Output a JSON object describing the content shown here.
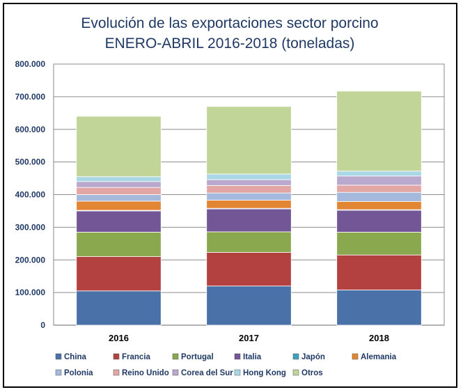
{
  "chart_data": {
    "type": "bar",
    "stacked": true,
    "title": "Evolución de las exportaciones sector porcino",
    "subtitle": "ENERO-ABRIL 2016-2018 (toneladas)",
    "xlabel": "",
    "ylabel": "",
    "ylim": [
      0,
      800000
    ],
    "grid": true,
    "legend": "bottom",
    "y_tick_labels": [
      "0",
      "100.000",
      "200.000",
      "300.000",
      "400.000",
      "500.000",
      "600.000",
      "700.000",
      "800.000"
    ],
    "categories": [
      "2016",
      "2017",
      "2018"
    ],
    "series": [
      {
        "name": "China",
        "color": "#4a72a9",
        "values": [
          105000,
          120000,
          108000
        ]
      },
      {
        "name": "Francia",
        "color": "#b3413f",
        "values": [
          105000,
          103000,
          107000
        ]
      },
      {
        "name": "Portugal",
        "color": "#8aa84e",
        "values": [
          75000,
          63000,
          70000
        ]
      },
      {
        "name": "Italia",
        "color": "#735696",
        "values": [
          65000,
          70000,
          67000
        ]
      },
      {
        "name": "Japón",
        "color": "#3f9fbc",
        "values": [
          2000,
          2000,
          2000
        ]
      },
      {
        "name": "Alemania",
        "color": "#e38633",
        "values": [
          28000,
          25000,
          25000
        ]
      },
      {
        "name": "Polonia",
        "color": "#a4b9dc",
        "values": [
          20000,
          22000,
          28000
        ]
      },
      {
        "name": "Reino Unido",
        "color": "#e2a6a5",
        "values": [
          22000,
          23000,
          22000
        ]
      },
      {
        "name": "Corea del Sur",
        "color": "#b9a9cf",
        "values": [
          18000,
          18000,
          28000
        ]
      },
      {
        "name": "Hong Kong",
        "color": "#a9d7e6",
        "values": [
          15000,
          17000,
          15000
        ]
      },
      {
        "name": "Otros",
        "color": "#c2d599",
        "values": [
          185000,
          207000,
          245000
        ]
      }
    ],
    "bar_border_color": "#ffffff",
    "axis_text_color": "#1f3864",
    "plot_background": "#ffffff"
  }
}
